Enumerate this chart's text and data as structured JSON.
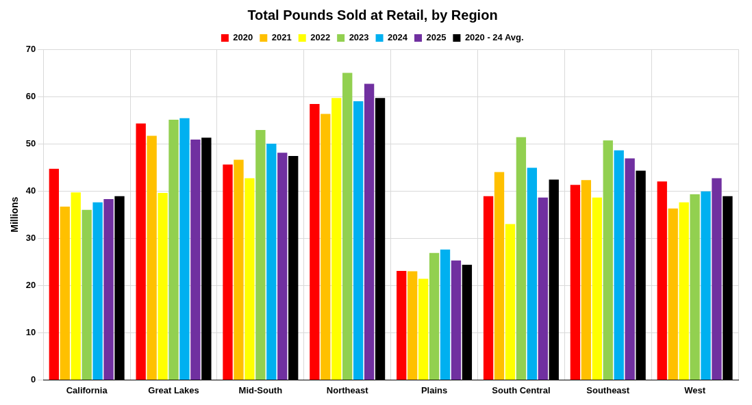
{
  "chart_data": {
    "type": "bar",
    "title": "Total Pounds Sold at Retail, by Region",
    "ylabel": "Millions",
    "categories": [
      "California",
      "Great Lakes",
      "Mid-South",
      "Northeast",
      "Plains",
      "South Central",
      "Southeast",
      "West"
    ],
    "series": [
      {
        "name": "2020",
        "color": "#ff0000",
        "values": [
          44.7,
          54.3,
          45.6,
          58.4,
          23.1,
          38.9,
          41.3,
          42.0
        ]
      },
      {
        "name": "2021",
        "color": "#ffc000",
        "values": [
          36.7,
          51.7,
          46.6,
          56.3,
          23.0,
          44.0,
          42.3,
          36.3
        ]
      },
      {
        "name": "2022",
        "color": "#ffff00",
        "values": [
          39.7,
          39.6,
          42.7,
          59.7,
          21.4,
          33.0,
          38.6,
          37.6
        ]
      },
      {
        "name": "2023",
        "color": "#92d050",
        "values": [
          36.0,
          55.1,
          52.9,
          65.0,
          26.9,
          51.4,
          50.7,
          39.3
        ]
      },
      {
        "name": "2024",
        "color": "#00b0f0",
        "values": [
          37.6,
          55.4,
          50.0,
          59.0,
          27.6,
          44.9,
          48.6,
          39.9
        ]
      },
      {
        "name": "2025",
        "color": "#7030a0",
        "values": [
          38.3,
          50.9,
          48.1,
          62.7,
          25.3,
          38.6,
          46.9,
          42.7
        ]
      },
      {
        "name": "2020 - 24 Avg.",
        "color": "#000000",
        "values": [
          38.9,
          51.3,
          47.4,
          59.7,
          24.4,
          42.4,
          44.3,
          38.9
        ]
      }
    ],
    "ylim": [
      0,
      70
    ],
    "yticks": [
      0,
      10,
      20,
      30,
      40,
      50,
      60,
      70
    ],
    "grid": true,
    "legend": "top"
  }
}
